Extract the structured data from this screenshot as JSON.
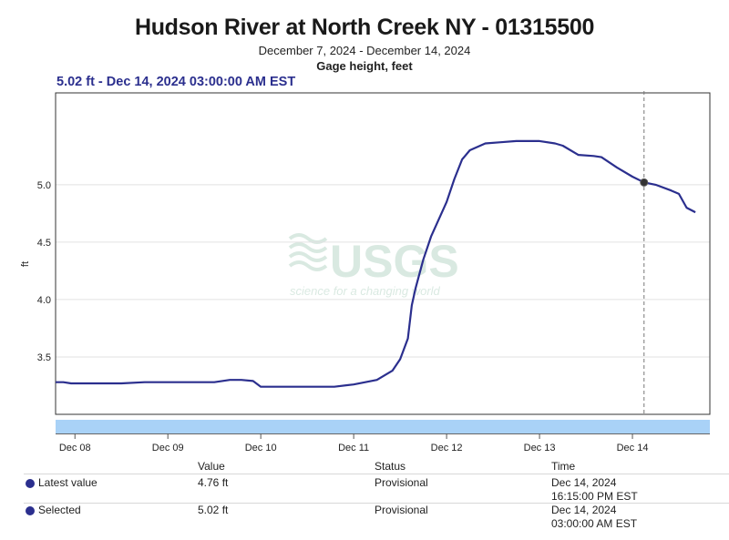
{
  "header": {
    "title": "Hudson River at North Creek NY - 01315500",
    "date_range": "December 7, 2024 - December 14, 2024",
    "parameter": "Gage height, feet"
  },
  "readout": "5.02 ft - Dec 14, 2024 03:00:00 AM EST",
  "watermark": {
    "logo": "USGS",
    "tagline": "science for a changing world"
  },
  "chart_data": {
    "type": "line",
    "ylabel": "ft",
    "ylim": [
      3.0,
      5.8
    ],
    "yticks": [
      3.5,
      4.0,
      4.5,
      5.0
    ],
    "ytick_labels": [
      "3.5",
      "4.0",
      "4.5",
      "5.0"
    ],
    "xlim": [
      "2024-12-07T19:00",
      "2024-12-14T20:00"
    ],
    "xticks": [
      "2024-12-08",
      "2024-12-09",
      "2024-12-10",
      "2024-12-11",
      "2024-12-12",
      "2024-12-13",
      "2024-12-14"
    ],
    "xtick_labels": [
      "Dec 08",
      "Dec 09",
      "Dec 10",
      "Dec 11",
      "Dec 12",
      "Dec 13",
      "Dec 14"
    ],
    "grid": true,
    "color": "#2b2f8e",
    "series": [
      {
        "x": [
          "2024-12-07T19:00",
          "2024-12-07T21:00",
          "2024-12-07T23:00",
          "2024-12-08T06:00",
          "2024-12-08T12:00",
          "2024-12-08T18:00",
          "2024-12-09T00:00",
          "2024-12-09T06:00",
          "2024-12-09T12:00",
          "2024-12-09T16:00",
          "2024-12-09T19:00",
          "2024-12-09T22:00",
          "2024-12-10T00:00",
          "2024-12-10T12:00",
          "2024-12-10T19:00",
          "2024-12-11T00:00",
          "2024-12-11T06:00",
          "2024-12-11T10:00",
          "2024-12-11T12:00",
          "2024-12-11T14:00",
          "2024-12-11T15:00",
          "2024-12-11T16:00",
          "2024-12-11T18:00",
          "2024-12-11T20:00",
          "2024-12-11T22:00",
          "2024-12-12T00:00",
          "2024-12-12T02:00",
          "2024-12-12T04:00",
          "2024-12-12T06:00",
          "2024-12-12T08:00",
          "2024-12-12T10:00",
          "2024-12-12T14:00",
          "2024-12-12T18:00",
          "2024-12-13T00:00",
          "2024-12-13T04:00",
          "2024-12-13T06:00",
          "2024-12-13T10:00",
          "2024-12-13T14:00",
          "2024-12-13T16:00",
          "2024-12-13T20:00",
          "2024-12-14T00:00",
          "2024-12-14T03:00",
          "2024-12-14T06:00",
          "2024-12-14T10:00",
          "2024-12-14T12:00",
          "2024-12-14T14:00",
          "2024-12-14T16:15"
        ],
        "y": [
          3.28,
          3.28,
          3.27,
          3.27,
          3.27,
          3.28,
          3.28,
          3.28,
          3.28,
          3.3,
          3.3,
          3.29,
          3.24,
          3.24,
          3.24,
          3.26,
          3.3,
          3.38,
          3.48,
          3.66,
          3.95,
          4.1,
          4.35,
          4.55,
          4.7,
          4.85,
          5.05,
          5.22,
          5.3,
          5.33,
          5.36,
          5.37,
          5.38,
          5.38,
          5.36,
          5.34,
          5.26,
          5.25,
          5.24,
          5.15,
          5.07,
          5.02,
          5.0,
          4.95,
          4.92,
          4.8,
          4.76
        ]
      }
    ],
    "selected_point": {
      "x": "2024-12-14T03:00",
      "y": 5.02
    }
  },
  "table": {
    "headers": [
      "Value",
      "Status",
      "Time"
    ],
    "rows": [
      {
        "name": "Latest value",
        "value": "4.76 ft",
        "status": "Provisional",
        "time1": "Dec 14, 2024",
        "time2": "16:15:00 PM EST"
      },
      {
        "name": "Selected",
        "value": "5.02 ft",
        "status": "Provisional",
        "time1": "Dec 14, 2024",
        "time2": "03:00:00 AM EST"
      }
    ]
  }
}
